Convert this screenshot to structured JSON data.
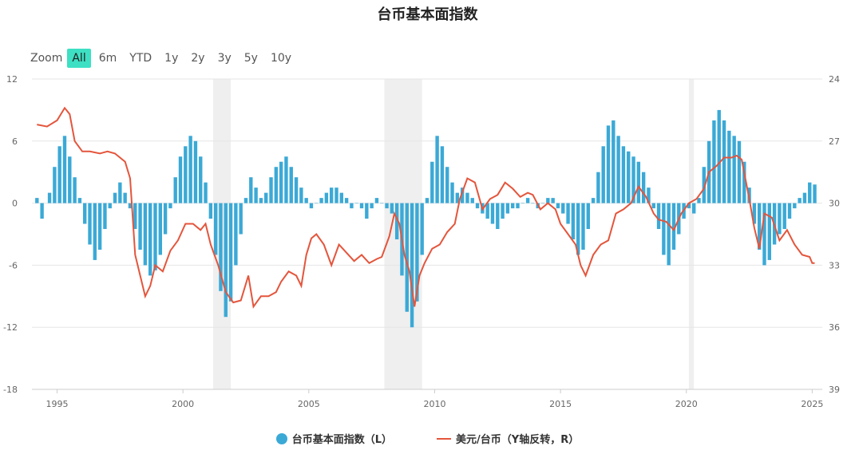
{
  "title": "台币基本面指数",
  "zoom": {
    "label": "Zoom",
    "buttons": [
      "All",
      "6m",
      "YTD",
      "1y",
      "2y",
      "3y",
      "5y",
      "10y"
    ],
    "active": "All"
  },
  "colors": {
    "bars": "#3ba9d6",
    "line": "#e4553c",
    "shade": "#efefef",
    "grid": "#e6e6e6"
  },
  "chart_data": {
    "type": "bar+line",
    "title": "台币基本面指数",
    "x_range": [
      1994.0,
      2025.4
    ],
    "x_ticks": [
      "1995",
      "2000",
      "2005",
      "2010",
      "2015",
      "2020",
      "2025"
    ],
    "left_axis": {
      "range": [
        -18,
        12
      ],
      "ticks": [
        "12",
        "6",
        "0",
        "-6",
        "-12",
        "-18"
      ]
    },
    "right_axis": {
      "range": [
        24,
        39
      ],
      "inverted": true,
      "ticks": [
        "24",
        "27",
        "30",
        "33",
        "36",
        "39"
      ]
    },
    "shaded_periods": [
      [
        2001.2,
        2001.9
      ],
      [
        2008.0,
        2009.5
      ],
      [
        2020.1,
        2020.3
      ]
    ],
    "grid": true,
    "legend": "bottom-center",
    "series": [
      {
        "name": "台币基本面指数（L）",
        "type": "bar",
        "axis": "left",
        "points": [
          [
            1994.2,
            0.5
          ],
          [
            1994.4,
            -1.5
          ],
          [
            1994.7,
            1.0
          ],
          [
            1994.9,
            3.5
          ],
          [
            1995.1,
            5.5
          ],
          [
            1995.3,
            6.5
          ],
          [
            1995.5,
            4.5
          ],
          [
            1995.7,
            2.5
          ],
          [
            1995.9,
            0.5
          ],
          [
            1996.1,
            -2.0
          ],
          [
            1996.3,
            -4.0
          ],
          [
            1996.5,
            -5.5
          ],
          [
            1996.7,
            -4.5
          ],
          [
            1996.9,
            -2.5
          ],
          [
            1997.1,
            -0.5
          ],
          [
            1997.3,
            1.0
          ],
          [
            1997.5,
            2.0
          ],
          [
            1997.7,
            1.0
          ],
          [
            1997.9,
            -0.5
          ],
          [
            1998.1,
            -2.5
          ],
          [
            1998.3,
            -4.5
          ],
          [
            1998.5,
            -6.0
          ],
          [
            1998.7,
            -7.0
          ],
          [
            1998.9,
            -6.5
          ],
          [
            1999.1,
            -5.0
          ],
          [
            1999.3,
            -3.0
          ],
          [
            1999.5,
            -0.5
          ],
          [
            1999.7,
            2.5
          ],
          [
            1999.9,
            4.5
          ],
          [
            2000.1,
            5.5
          ],
          [
            2000.3,
            6.5
          ],
          [
            2000.5,
            6.0
          ],
          [
            2000.7,
            4.5
          ],
          [
            2000.9,
            2.0
          ],
          [
            2001.1,
            -1.5
          ],
          [
            2001.3,
            -5.0
          ],
          [
            2001.5,
            -8.5
          ],
          [
            2001.7,
            -11.0
          ],
          [
            2001.9,
            -9.5
          ],
          [
            2002.1,
            -6.0
          ],
          [
            2002.3,
            -3.0
          ],
          [
            2002.5,
            0.5
          ],
          [
            2002.7,
            2.5
          ],
          [
            2002.9,
            1.5
          ],
          [
            2003.1,
            0.5
          ],
          [
            2003.3,
            1.0
          ],
          [
            2003.5,
            2.5
          ],
          [
            2003.7,
            3.5
          ],
          [
            2003.9,
            4.0
          ],
          [
            2004.1,
            4.5
          ],
          [
            2004.3,
            3.5
          ],
          [
            2004.5,
            2.5
          ],
          [
            2004.7,
            1.5
          ],
          [
            2004.9,
            0.5
          ],
          [
            2005.1,
            -0.5
          ],
          [
            2005.3,
            0.0
          ],
          [
            2005.5,
            0.5
          ],
          [
            2005.7,
            1.0
          ],
          [
            2005.9,
            1.5
          ],
          [
            2006.1,
            1.5
          ],
          [
            2006.3,
            1.0
          ],
          [
            2006.5,
            0.5
          ],
          [
            2006.7,
            -0.5
          ],
          [
            2006.9,
            0.0
          ],
          [
            2007.1,
            -0.5
          ],
          [
            2007.3,
            -1.5
          ],
          [
            2007.5,
            -0.5
          ],
          [
            2007.7,
            0.5
          ],
          [
            2007.9,
            0.0
          ],
          [
            2008.1,
            -0.5
          ],
          [
            2008.3,
            -1.0
          ],
          [
            2008.5,
            -3.5
          ],
          [
            2008.7,
            -7.0
          ],
          [
            2008.9,
            -10.5
          ],
          [
            2009.1,
            -12.0
          ],
          [
            2009.3,
            -9.5
          ],
          [
            2009.5,
            -5.0
          ],
          [
            2009.7,
            0.5
          ],
          [
            2009.9,
            4.0
          ],
          [
            2010.1,
            6.5
          ],
          [
            2010.3,
            5.5
          ],
          [
            2010.5,
            3.5
          ],
          [
            2010.7,
            2.0
          ],
          [
            2010.9,
            1.0
          ],
          [
            2011.1,
            1.5
          ],
          [
            2011.3,
            1.0
          ],
          [
            2011.5,
            0.5
          ],
          [
            2011.7,
            -0.5
          ],
          [
            2011.9,
            -1.0
          ],
          [
            2012.1,
            -1.5
          ],
          [
            2012.3,
            -2.0
          ],
          [
            2012.5,
            -2.5
          ],
          [
            2012.7,
            -1.5
          ],
          [
            2012.9,
            -1.0
          ],
          [
            2013.1,
            -0.5
          ],
          [
            2013.3,
            -0.5
          ],
          [
            2013.5,
            0.0
          ],
          [
            2013.7,
            0.5
          ],
          [
            2013.9,
            0.0
          ],
          [
            2014.1,
            -0.5
          ],
          [
            2014.3,
            0.0
          ],
          [
            2014.5,
            0.5
          ],
          [
            2014.7,
            0.5
          ],
          [
            2014.9,
            -0.5
          ],
          [
            2015.1,
            -1.0
          ],
          [
            2015.3,
            -2.0
          ],
          [
            2015.5,
            -3.5
          ],
          [
            2015.7,
            -5.0
          ],
          [
            2015.9,
            -4.5
          ],
          [
            2016.1,
            -2.5
          ],
          [
            2016.3,
            0.5
          ],
          [
            2016.5,
            3.0
          ],
          [
            2016.7,
            5.5
          ],
          [
            2016.9,
            7.5
          ],
          [
            2017.1,
            8.0
          ],
          [
            2017.3,
            6.5
          ],
          [
            2017.5,
            5.5
          ],
          [
            2017.7,
            5.0
          ],
          [
            2017.9,
            4.5
          ],
          [
            2018.1,
            4.0
          ],
          [
            2018.3,
            3.0
          ],
          [
            2018.5,
            1.5
          ],
          [
            2018.7,
            -0.5
          ],
          [
            2018.9,
            -2.5
          ],
          [
            2019.1,
            -5.0
          ],
          [
            2019.3,
            -6.0
          ],
          [
            2019.5,
            -4.5
          ],
          [
            2019.7,
            -3.0
          ],
          [
            2019.9,
            -1.5
          ],
          [
            2020.1,
            -0.5
          ],
          [
            2020.3,
            -1.0
          ],
          [
            2020.5,
            0.5
          ],
          [
            2020.7,
            3.5
          ],
          [
            2020.9,
            6.0
          ],
          [
            2021.1,
            8.0
          ],
          [
            2021.3,
            9.0
          ],
          [
            2021.5,
            8.0
          ],
          [
            2021.7,
            7.0
          ],
          [
            2021.9,
            6.5
          ],
          [
            2022.1,
            6.0
          ],
          [
            2022.3,
            4.0
          ],
          [
            2022.5,
            1.5
          ],
          [
            2022.7,
            -2.0
          ],
          [
            2022.9,
            -4.5
          ],
          [
            2023.1,
            -6.0
          ],
          [
            2023.3,
            -5.5
          ],
          [
            2023.5,
            -4.0
          ],
          [
            2023.7,
            -3.0
          ],
          [
            2023.9,
            -2.5
          ],
          [
            2024.1,
            -1.5
          ],
          [
            2024.3,
            -0.5
          ],
          [
            2024.5,
            0.5
          ],
          [
            2024.7,
            1.0
          ],
          [
            2024.9,
            2.0
          ],
          [
            2025.1,
            1.8
          ]
        ]
      },
      {
        "name": "美元/台币（Y轴反转，R）",
        "type": "line",
        "axis": "right",
        "points": [
          [
            1994.2,
            26.2
          ],
          [
            1994.6,
            26.3
          ],
          [
            1995.0,
            26.0
          ],
          [
            1995.3,
            25.4
          ],
          [
            1995.5,
            25.7
          ],
          [
            1995.7,
            27.0
          ],
          [
            1996.0,
            27.5
          ],
          [
            1996.3,
            27.5
          ],
          [
            1996.7,
            27.6
          ],
          [
            1997.0,
            27.5
          ],
          [
            1997.3,
            27.6
          ],
          [
            1997.7,
            28.0
          ],
          [
            1997.9,
            28.8
          ],
          [
            1998.1,
            32.5
          ],
          [
            1998.3,
            33.5
          ],
          [
            1998.5,
            34.5
          ],
          [
            1998.7,
            34.0
          ],
          [
            1998.9,
            33.0
          ],
          [
            1999.2,
            33.3
          ],
          [
            1999.5,
            32.3
          ],
          [
            1999.8,
            31.8
          ],
          [
            2000.1,
            31.0
          ],
          [
            2000.4,
            31.0
          ],
          [
            2000.7,
            31.3
          ],
          [
            2000.9,
            31.0
          ],
          [
            2001.1,
            32.0
          ],
          [
            2001.4,
            33.0
          ],
          [
            2001.7,
            34.3
          ],
          [
            2002.0,
            34.8
          ],
          [
            2002.3,
            34.7
          ],
          [
            2002.6,
            33.5
          ],
          [
            2002.8,
            35.0
          ],
          [
            2003.1,
            34.5
          ],
          [
            2003.4,
            34.5
          ],
          [
            2003.7,
            34.3
          ],
          [
            2003.9,
            33.8
          ],
          [
            2004.2,
            33.3
          ],
          [
            2004.5,
            33.5
          ],
          [
            2004.7,
            34.0
          ],
          [
            2004.9,
            32.5
          ],
          [
            2005.1,
            31.7
          ],
          [
            2005.3,
            31.5
          ],
          [
            2005.6,
            32.0
          ],
          [
            2005.9,
            33.0
          ],
          [
            2006.2,
            32.0
          ],
          [
            2006.5,
            32.4
          ],
          [
            2006.8,
            32.8
          ],
          [
            2007.1,
            32.5
          ],
          [
            2007.4,
            32.9
          ],
          [
            2007.7,
            32.7
          ],
          [
            2007.9,
            32.6
          ],
          [
            2008.2,
            31.6
          ],
          [
            2008.4,
            30.5
          ],
          [
            2008.6,
            31.0
          ],
          [
            2008.8,
            32.5
          ],
          [
            2009.0,
            33.3
          ],
          [
            2009.2,
            35.0
          ],
          [
            2009.4,
            33.5
          ],
          [
            2009.6,
            32.9
          ],
          [
            2009.9,
            32.2
          ],
          [
            2010.2,
            32.0
          ],
          [
            2010.5,
            31.4
          ],
          [
            2010.8,
            31.0
          ],
          [
            2011.0,
            29.8
          ],
          [
            2011.3,
            28.8
          ],
          [
            2011.6,
            29.0
          ],
          [
            2011.9,
            30.3
          ],
          [
            2012.2,
            29.8
          ],
          [
            2012.5,
            29.6
          ],
          [
            2012.8,
            29.0
          ],
          [
            2013.1,
            29.3
          ],
          [
            2013.4,
            29.7
          ],
          [
            2013.7,
            29.5
          ],
          [
            2013.9,
            29.6
          ],
          [
            2014.2,
            30.3
          ],
          [
            2014.5,
            30.0
          ],
          [
            2014.8,
            30.3
          ],
          [
            2015.0,
            31.0
          ],
          [
            2015.3,
            31.5
          ],
          [
            2015.6,
            32.0
          ],
          [
            2015.8,
            33.0
          ],
          [
            2016.0,
            33.5
          ],
          [
            2016.3,
            32.5
          ],
          [
            2016.6,
            32.0
          ],
          [
            2016.9,
            31.8
          ],
          [
            2017.2,
            30.5
          ],
          [
            2017.5,
            30.3
          ],
          [
            2017.8,
            30.0
          ],
          [
            2018.1,
            29.2
          ],
          [
            2018.4,
            29.7
          ],
          [
            2018.7,
            30.5
          ],
          [
            2018.9,
            30.8
          ],
          [
            2019.2,
            30.9
          ],
          [
            2019.5,
            31.3
          ],
          [
            2019.8,
            30.5
          ],
          [
            2020.1,
            30.0
          ],
          [
            2020.4,
            29.8
          ],
          [
            2020.7,
            29.3
          ],
          [
            2020.9,
            28.5
          ],
          [
            2021.2,
            28.2
          ],
          [
            2021.5,
            27.8
          ],
          [
            2021.8,
            27.8
          ],
          [
            2022.0,
            27.7
          ],
          [
            2022.2,
            27.9
          ],
          [
            2022.5,
            29.8
          ],
          [
            2022.7,
            31.2
          ],
          [
            2022.9,
            32.2
          ],
          [
            2023.1,
            30.5
          ],
          [
            2023.4,
            30.7
          ],
          [
            2023.7,
            31.8
          ],
          [
            2024.0,
            31.3
          ],
          [
            2024.3,
            32.0
          ],
          [
            2024.6,
            32.5
          ],
          [
            2024.9,
            32.6
          ],
          [
            2025.0,
            32.9
          ],
          [
            2025.1,
            32.9
          ]
        ]
      }
    ]
  },
  "legend_items": [
    "台币基本面指数（L）",
    "美元/台币（Y轴反转，R）"
  ]
}
